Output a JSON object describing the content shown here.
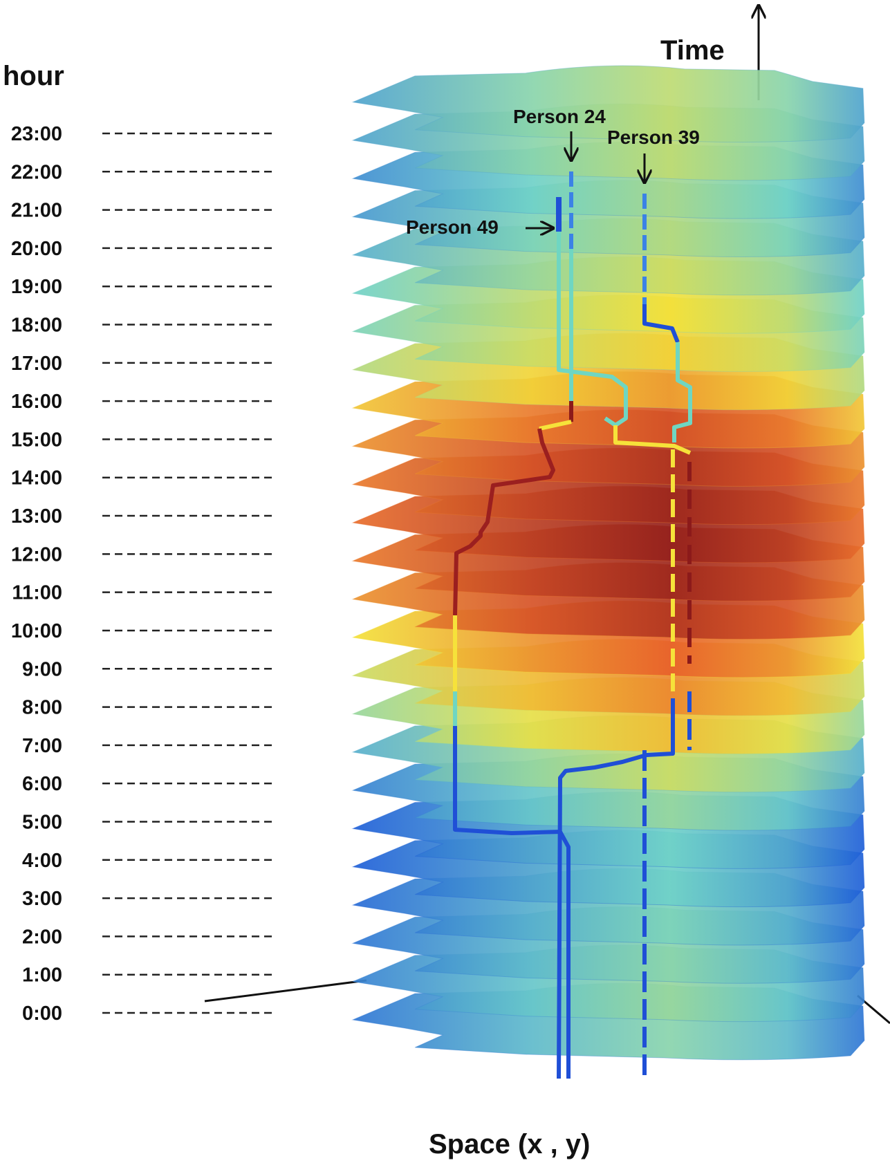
{
  "figure": {
    "hour_heading": "hour",
    "time_axis_label": "Time",
    "space_axis_label": "Space (x , y)",
    "hours": [
      "23:00",
      "22:00",
      "21:00",
      "20:00",
      "19:00",
      "18:00",
      "17:00",
      "16:00",
      "15:00",
      "14:00",
      "13:00",
      "12:00",
      "11:00",
      "10:00",
      "9:00",
      "8:00",
      "7:00",
      "6:00",
      "5:00",
      "4:00",
      "3:00",
      "2:00",
      "1:00",
      "0:00"
    ],
    "people": [
      {
        "label": "Person 24",
        "color": "#1f4fd6"
      },
      {
        "label": "Person 39",
        "color": "#1f4fd6"
      },
      {
        "label": "Person 49",
        "color": "#1f4fd6"
      }
    ],
    "colors": {
      "low": "#1f5fd8",
      "mid_low": "#6fd1c8",
      "mid": "#f3e13a",
      "high": "#e8612a",
      "max": "#8c1a1a"
    }
  }
}
